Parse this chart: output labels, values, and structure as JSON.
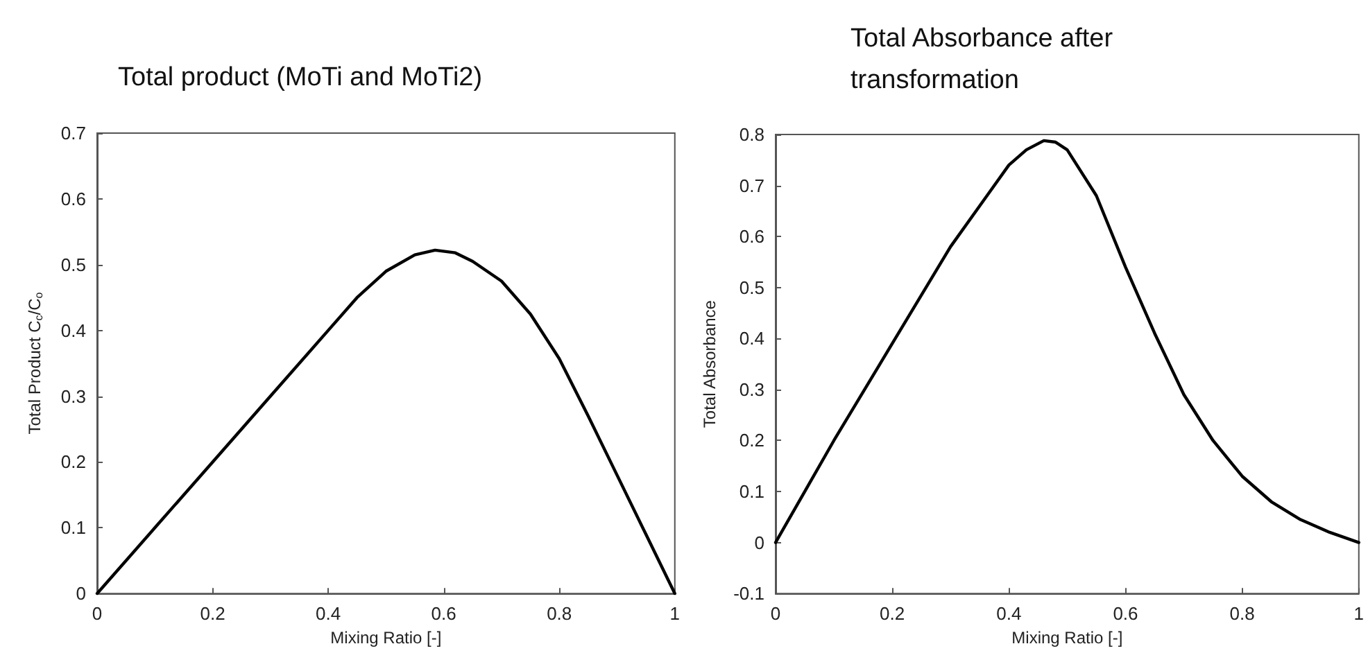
{
  "chart_data": [
    {
      "type": "line",
      "title": "Total product (MoTi and MoTi2)",
      "xlabel": "Mixing Ratio [-]",
      "ylabel": "Total Product C$_{c}$/C$_{o}$",
      "series": [
        {
          "color": "#000000",
          "x": [
            0,
            0.1,
            0.2,
            0.3,
            0.4,
            0.45,
            0.5,
            0.55,
            0.585,
            0.62,
            0.65,
            0.7,
            0.75,
            0.8,
            0.85,
            0.9,
            0.95,
            1
          ],
          "values": [
            0,
            0.1,
            0.2,
            0.3,
            0.4,
            0.45,
            0.49,
            0.515,
            0.522,
            0.518,
            0.505,
            0.475,
            0.425,
            0.357,
            0.27,
            0.18,
            0.09,
            0
          ]
        }
      ],
      "xlim": [
        0,
        1
      ],
      "xticks": [
        0,
        0.2,
        0.4,
        0.6,
        0.8,
        1
      ],
      "ylim": [
        0,
        0.7
      ],
      "yticks": [
        0,
        0.1,
        0.2,
        0.3,
        0.4,
        0.5,
        0.6,
        0.7
      ],
      "marker": "none",
      "line_style": "solid"
    },
    {
      "type": "line",
      "title": "Total Absorbance after transformation",
      "xlabel": "Mixing Ratio [-]",
      "ylabel": "Total Absorbance",
      "series": [
        {
          "color": "#000000",
          "x": [
            0,
            0.05,
            0.1,
            0.2,
            0.3,
            0.35,
            0.4,
            0.43,
            0.46,
            0.48,
            0.5,
            0.55,
            0.6,
            0.65,
            0.7,
            0.75,
            0.8,
            0.85,
            0.9,
            0.95,
            1
          ],
          "values": [
            0,
            0.1,
            0.2,
            0.39,
            0.58,
            0.66,
            0.74,
            0.77,
            0.788,
            0.785,
            0.77,
            0.68,
            0.54,
            0.41,
            0.29,
            0.2,
            0.13,
            0.08,
            0.045,
            0.02,
            0
          ]
        }
      ],
      "xlim": [
        0,
        1
      ],
      "xticks": [
        0,
        0.2,
        0.4,
        0.6,
        0.8,
        1
      ],
      "ylim": [
        -0.1,
        0.8
      ],
      "yticks": [
        -0.1,
        0,
        0.1,
        0.2,
        0.3,
        0.4,
        0.5,
        0.6,
        0.7,
        0.8
      ],
      "marker": "none",
      "line_style": "solid"
    }
  ]
}
